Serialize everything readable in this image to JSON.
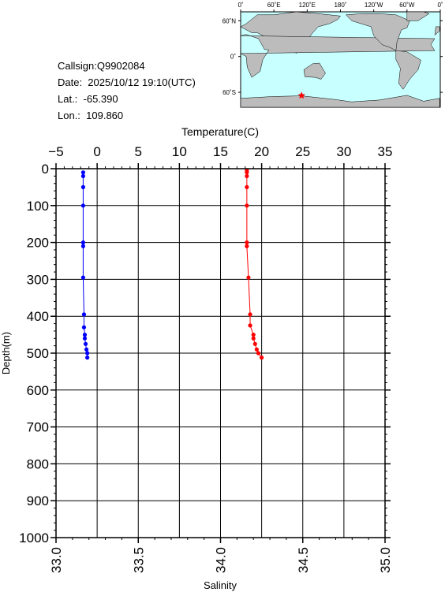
{
  "info": {
    "callsign": "Callsign:Q9902084",
    "date": "Date:  2025/10/12 19:10(UTC)",
    "lat": "Lat.:  -65.390",
    "lon": "Lon.:  109.860"
  },
  "map": {
    "lon_labels": [
      "0˚",
      "60˚E",
      "120˚E",
      "180˚",
      "120˚W",
      "60˚W",
      "0˚"
    ],
    "lat_labels": [
      "60˚N",
      "0˚",
      "60˚S"
    ],
    "ocean_color": "#c8ffff",
    "land_color": "#bcbcbc",
    "marker": {
      "lat": -65.39,
      "lon": 109.86,
      "color": "#ff0000"
    }
  },
  "chart_data": {
    "type": "line",
    "top_axis_label": "Temperature(C)",
    "bottom_axis_label": "Salinity",
    "ylabel": "Depth(m)",
    "temp_ticks": [
      "-5",
      "0",
      "5",
      "10",
      "15",
      "20",
      "25",
      "30",
      "35"
    ],
    "sal_ticks": [
      "33.0",
      "33.5",
      "34.0",
      "34.5",
      "35.0"
    ],
    "depth_ticks": [
      "0",
      "100",
      "200",
      "300",
      "400",
      "500",
      "600",
      "700",
      "800",
      "900",
      "1000"
    ],
    "temp_range": [
      -5,
      35
    ],
    "sal_range": [
      33.0,
      35.0
    ],
    "depth_range": [
      0,
      1000
    ],
    "series": [
      {
        "color": "#0000ff",
        "axis": "temperature",
        "depth": [
          10,
          20,
          50,
          100,
          200,
          210,
          295,
          395,
          430,
          450,
          460,
          475,
          490,
          500,
          512
        ],
        "values": [
          -1.7,
          -1.7,
          -1.7,
          -1.7,
          -1.7,
          -1.7,
          -1.7,
          -1.6,
          -1.6,
          -1.5,
          -1.5,
          -1.4,
          -1.3,
          -1.2,
          -1.2
        ]
      },
      {
        "color": "#ff0000",
        "axis": "salinity",
        "depth": [
          5,
          10,
          20,
          50,
          100,
          200,
          210,
          295,
          395,
          425,
          450,
          460,
          475,
          490,
          500,
          512
        ],
        "values": [
          34.16,
          34.16,
          34.16,
          34.16,
          34.16,
          34.16,
          34.16,
          34.17,
          34.18,
          34.18,
          34.2,
          34.2,
          34.21,
          34.22,
          34.23,
          34.25
        ]
      }
    ]
  }
}
